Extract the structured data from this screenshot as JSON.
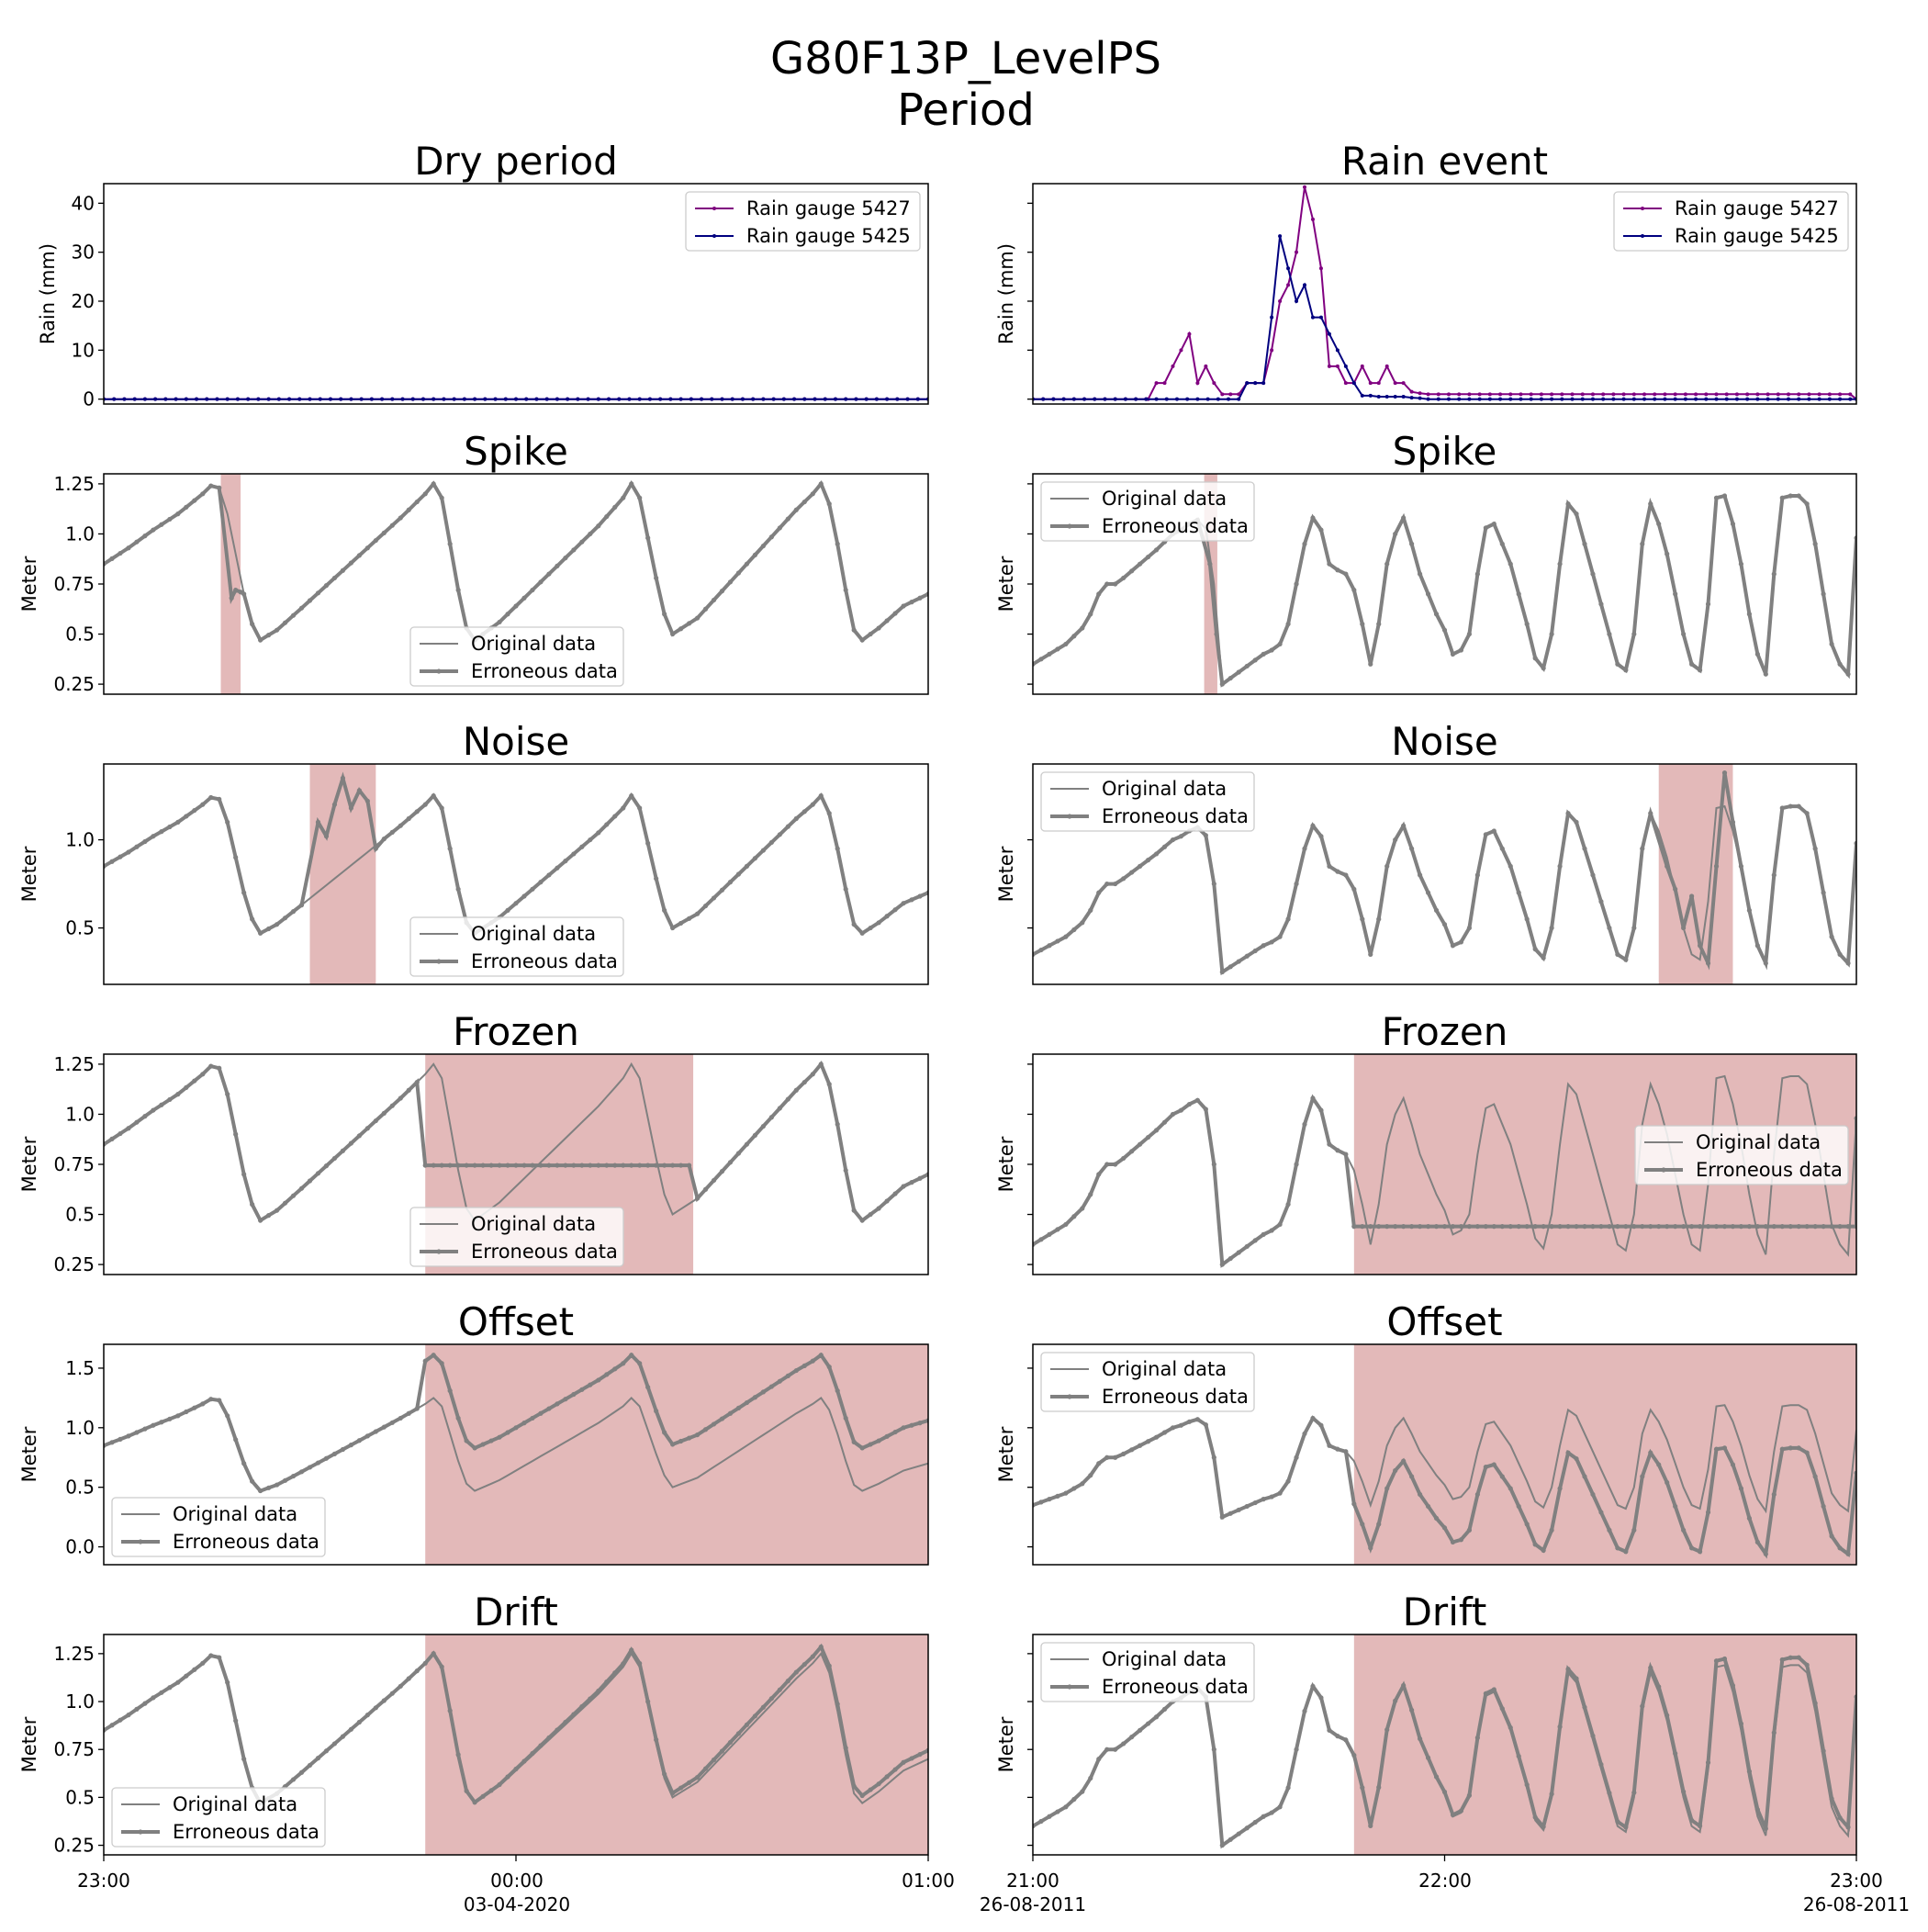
{
  "figure": {
    "title_line1": "G80F13P_LevelPS",
    "title_line2": "Period"
  },
  "colors": {
    "rain_5427": "#800080",
    "rain_5425": "#00007f",
    "series": "#808080",
    "error_region": "#e3b9b9"
  },
  "x_axes": {
    "left": {
      "ticks": [
        "23:00",
        "00:00",
        "01:00"
      ],
      "date_label": "03-04-2020"
    },
    "right": {
      "ticks": [
        "21:00",
        "22:00",
        "23:00"
      ],
      "start_date_label": "26-08-2011",
      "end_date_label": "26-08-2011"
    }
  },
  "chart_data": [
    {
      "id": "rain-dry",
      "type": "line",
      "title": "Dry period",
      "ylabel": "Rain (mm)",
      "ylim": [
        -1,
        44
      ],
      "yticks": [
        0,
        10,
        20,
        30,
        40
      ],
      "legend": [
        "Rain gauge 5427",
        "Rain gauge 5425"
      ],
      "legend_loc": "upper right",
      "series": [
        {
          "name": "Rain gauge 5427",
          "values": [
            0
          ]
        },
        {
          "name": "Rain gauge 5425",
          "values": [
            0
          ]
        }
      ]
    },
    {
      "id": "rain-event",
      "type": "line",
      "title": "Rain event",
      "ylabel": "Rain (mm)",
      "ylim": [
        -1,
        44
      ],
      "yticks": [
        0,
        10,
        20,
        30,
        40
      ],
      "legend": [
        "Rain gauge 5427",
        "Rain gauge 5425"
      ],
      "legend_loc": "upper right",
      "series": [
        {
          "name": "Rain gauge 5427",
          "x": [
            0,
            14,
            15,
            16,
            17,
            18,
            19,
            20,
            21,
            22,
            23,
            24,
            25,
            26,
            27,
            28,
            29,
            30,
            31,
            32,
            33,
            34,
            35,
            36,
            37,
            38,
            39,
            40,
            41,
            42,
            43,
            44,
            45,
            46,
            47,
            48,
            100
          ],
          "values": [
            0,
            0,
            3.3,
            3.3,
            6.7,
            10,
            13.3,
            3.3,
            6.7,
            3.3,
            1,
            1,
            1,
            3.3,
            3.3,
            3.3,
            10,
            20,
            23.3,
            30,
            43.3,
            36.7,
            26.7,
            6.7,
            6.7,
            3.3,
            3.3,
            6.7,
            3.3,
            3.3,
            6.7,
            3.3,
            3.3,
            1.5,
            1.2,
            1,
            0
          ]
        },
        {
          "name": "Rain gauge 5425",
          "x": [
            0,
            25,
            26,
            27,
            28,
            29,
            30,
            31,
            32,
            33,
            34,
            35,
            36,
            37,
            38,
            39,
            40,
            41,
            42,
            43,
            44,
            45,
            46,
            47,
            48,
            100
          ],
          "values": [
            0,
            0,
            3.3,
            3.3,
            3.3,
            16.7,
            33.3,
            26.7,
            20,
            23.3,
            16.7,
            16.7,
            13.3,
            10,
            6.7,
            3.3,
            0.7,
            0.7,
            0.5,
            0.5,
            0.5,
            0.5,
            0.3,
            0.2,
            0,
            0
          ]
        }
      ]
    },
    {
      "id": "spike-dry",
      "type": "line",
      "title": "Spike",
      "ylabel": "Meter",
      "ylim": [
        0.2,
        1.3
      ],
      "yticks": [
        0.25,
        0.5,
        0.75,
        1.0,
        1.25
      ],
      "legend": [
        "Original data",
        "Erroneous data"
      ],
      "legend_loc": "lower center",
      "error_region": [
        14.2,
        16.6
      ]
    },
    {
      "id": "spike-rain",
      "type": "line",
      "title": "Spike",
      "ylabel": "Meter",
      "ylim": [
        0.2,
        1.3
      ],
      "yticks": [],
      "legend": [
        "Original data",
        "Erroneous data"
      ],
      "legend_loc": "upper left",
      "error_region": [
        20.8,
        22.4
      ]
    },
    {
      "id": "noise-dry",
      "type": "line",
      "title": "Noise",
      "ylabel": "Meter",
      "ylim": [
        0.18,
        1.43
      ],
      "yticks": [
        0.5,
        1.0
      ],
      "legend": [
        "Original data",
        "Erroneous data"
      ],
      "legend_loc": "lower center",
      "error_region": [
        25,
        33
      ]
    },
    {
      "id": "noise-rain",
      "type": "line",
      "title": "Noise",
      "ylabel": "Meter",
      "ylim": [
        0.18,
        1.43
      ],
      "yticks": [],
      "legend": [
        "Original data",
        "Erroneous data"
      ],
      "legend_loc": "upper left",
      "error_region": [
        76,
        85
      ]
    },
    {
      "id": "frozen-dry",
      "type": "line",
      "title": "Frozen",
      "ylabel": "Meter",
      "ylim": [
        0.2,
        1.3
      ],
      "yticks": [
        0.25,
        0.5,
        0.75,
        1.0,
        1.25
      ],
      "legend": [
        "Original data",
        "Erroneous data"
      ],
      "legend_loc": "lower center",
      "error_region": [
        39,
        71.5
      ],
      "frozen_value": 0.745
    },
    {
      "id": "frozen-rain",
      "type": "line",
      "title": "Frozen",
      "ylabel": "Meter",
      "ylim": [
        0.2,
        1.3
      ],
      "yticks": [],
      "legend": [
        "Original data",
        "Erroneous data"
      ],
      "legend_loc": "center right",
      "error_region": [
        39,
        100
      ],
      "frozen_value": 0.44
    },
    {
      "id": "offset-dry",
      "type": "line",
      "title": "Offset",
      "ylabel": "Meter",
      "ylim": [
        -0.15,
        1.7
      ],
      "yticks": [
        0.0,
        0.5,
        1.0,
        1.5
      ],
      "legend": [
        "Original data",
        "Erroneous data"
      ],
      "legend_loc": "lower left",
      "error_region": [
        39,
        100
      ],
      "offset": 0.36
    },
    {
      "id": "offset-rain",
      "type": "line",
      "title": "Offset",
      "ylabel": "Meter",
      "ylim": [
        -0.15,
        1.7
      ],
      "yticks": [],
      "legend": [
        "Original data",
        "Erroneous data"
      ],
      "legend_loc": "upper left",
      "error_region": [
        39,
        100
      ],
      "offset": -0.36
    },
    {
      "id": "drift-dry",
      "type": "line",
      "title": "Drift",
      "ylabel": "Meter",
      "ylim": [
        0.2,
        1.35
      ],
      "yticks": [
        0.25,
        0.5,
        0.75,
        1.0,
        1.25
      ],
      "legend": [
        "Original data",
        "Erroneous data"
      ],
      "legend_loc": "lower left",
      "error_region": [
        39,
        100
      ],
      "drift_end": 0.045
    },
    {
      "id": "drift-rain",
      "type": "line",
      "title": "Drift",
      "ylabel": "Meter",
      "ylim": [
        0.2,
        1.35
      ],
      "yticks": [],
      "legend": [
        "Original data",
        "Erroneous data"
      ],
      "legend_loc": "upper left",
      "error_region": [
        39,
        100
      ],
      "drift_end": 0.045
    }
  ],
  "level_series": {
    "dry_period": [
      [
        0,
        0.85
      ],
      [
        3,
        0.93
      ],
      [
        6,
        1.02
      ],
      [
        9,
        1.1
      ],
      [
        12,
        1.2
      ],
      [
        13,
        1.24
      ],
      [
        14,
        1.23
      ],
      [
        15,
        1.1
      ],
      [
        16,
        0.9
      ],
      [
        17,
        0.7
      ],
      [
        18,
        0.55
      ],
      [
        19,
        0.47
      ],
      [
        21,
        0.52
      ],
      [
        24,
        0.63
      ],
      [
        28,
        0.78
      ],
      [
        32,
        0.93
      ],
      [
        36,
        1.08
      ],
      [
        39,
        1.2
      ],
      [
        40,
        1.25
      ],
      [
        41,
        1.18
      ],
      [
        42,
        0.95
      ],
      [
        43,
        0.72
      ],
      [
        44,
        0.53
      ],
      [
        45,
        0.47
      ],
      [
        48,
        0.56
      ],
      [
        52,
        0.72
      ],
      [
        56,
        0.88
      ],
      [
        60,
        1.04
      ],
      [
        63,
        1.18
      ],
      [
        64,
        1.25
      ],
      [
        65,
        1.18
      ],
      [
        66,
        0.98
      ],
      [
        67,
        0.78
      ],
      [
        68,
        0.6
      ],
      [
        69,
        0.5
      ],
      [
        72,
        0.58
      ],
      [
        76,
        0.76
      ],
      [
        80,
        0.94
      ],
      [
        84,
        1.12
      ],
      [
        86,
        1.2
      ],
      [
        87,
        1.25
      ],
      [
        88,
        1.15
      ],
      [
        89,
        0.95
      ],
      [
        90,
        0.72
      ],
      [
        91,
        0.52
      ],
      [
        92,
        0.47
      ],
      [
        94,
        0.53
      ],
      [
        97,
        0.64
      ],
      [
        100,
        0.7
      ]
    ],
    "rain_event": [
      [
        0,
        0.35
      ],
      [
        2,
        0.4
      ],
      [
        4,
        0.45
      ],
      [
        6,
        0.53
      ],
      [
        7,
        0.6
      ],
      [
        8,
        0.7
      ],
      [
        9,
        0.75
      ],
      [
        10,
        0.75
      ],
      [
        11,
        0.78
      ],
      [
        13,
        0.85
      ],
      [
        15,
        0.92
      ],
      [
        17,
        1.0
      ],
      [
        18,
        1.02
      ],
      [
        19,
        1.05
      ],
      [
        20,
        1.07
      ],
      [
        20.8,
        1.08
      ],
      [
        22,
        0.75
      ],
      [
        23,
        0.25
      ],
      [
        24,
        0.28
      ],
      [
        26,
        0.34
      ],
      [
        28,
        0.4
      ],
      [
        29,
        0.42
      ],
      [
        30,
        0.45
      ],
      [
        31,
        0.55
      ],
      [
        32,
        0.75
      ],
      [
        33,
        0.95
      ],
      [
        34,
        1.08
      ],
      [
        35,
        1.02
      ],
      [
        36,
        0.85
      ],
      [
        37,
        0.82
      ],
      [
        38,
        0.8
      ],
      [
        39,
        0.72
      ],
      [
        40,
        0.55
      ],
      [
        41,
        0.35
      ],
      [
        42,
        0.55
      ],
      [
        43,
        0.85
      ],
      [
        44,
        1.0
      ],
      [
        45,
        1.08
      ],
      [
        46,
        0.95
      ],
      [
        47,
        0.8
      ],
      [
        48,
        0.7
      ],
      [
        49,
        0.6
      ],
      [
        50,
        0.52
      ],
      [
        51,
        0.4
      ],
      [
        52,
        0.42
      ],
      [
        53,
        0.5
      ],
      [
        54,
        0.8
      ],
      [
        55,
        1.03
      ],
      [
        56,
        1.05
      ],
      [
        57,
        0.95
      ],
      [
        58,
        0.85
      ],
      [
        59,
        0.7
      ],
      [
        60,
        0.55
      ],
      [
        61,
        0.38
      ],
      [
        62,
        0.33
      ],
      [
        63,
        0.5
      ],
      [
        64,
        0.85
      ],
      [
        65,
        1.15
      ],
      [
        66,
        1.1
      ],
      [
        67,
        0.95
      ],
      [
        68,
        0.8
      ],
      [
        69,
        0.65
      ],
      [
        70,
        0.5
      ],
      [
        71,
        0.35
      ],
      [
        72,
        0.32
      ],
      [
        73,
        0.5
      ],
      [
        74,
        0.95
      ],
      [
        75,
        1.15
      ],
      [
        76,
        1.05
      ],
      [
        77,
        0.9
      ],
      [
        78,
        0.7
      ],
      [
        79,
        0.5
      ],
      [
        80,
        0.35
      ],
      [
        81,
        0.32
      ],
      [
        82,
        0.65
      ],
      [
        83,
        1.18
      ],
      [
        84,
        1.19
      ],
      [
        85,
        1.05
      ],
      [
        86,
        0.85
      ],
      [
        87,
        0.6
      ],
      [
        88,
        0.4
      ],
      [
        89,
        0.3
      ],
      [
        90,
        0.8
      ],
      [
        91,
        1.18
      ],
      [
        92,
        1.19
      ],
      [
        93,
        1.19
      ],
      [
        94,
        1.15
      ],
      [
        95,
        0.95
      ],
      [
        96,
        0.7
      ],
      [
        97,
        0.45
      ],
      [
        98,
        0.35
      ],
      [
        99,
        0.3
      ],
      [
        100,
        0.98
      ]
    ]
  },
  "error_overrides": {
    "spike-dry": [
      [
        15.5,
        0.68
      ],
      [
        16,
        0.72
      ],
      [
        16.6,
        0.71
      ]
    ],
    "spike-rain": [
      [
        21.5,
        0.85
      ],
      [
        22.3,
        0.5
      ]
    ],
    "noise-dry": [
      [
        26,
        1.1
      ],
      [
        27,
        1.02
      ],
      [
        28,
        1.2
      ],
      [
        29,
        1.35
      ],
      [
        30,
        1.18
      ],
      [
        31,
        1.28
      ],
      [
        32,
        1.22
      ],
      [
        33,
        0.95
      ]
    ],
    "noise-rain": [
      [
        77,
        0.85
      ],
      [
        78,
        0.72
      ],
      [
        79,
        0.5
      ],
      [
        80,
        0.68
      ],
      [
        81,
        0.4
      ],
      [
        82,
        0.3
      ],
      [
        83,
        0.85
      ],
      [
        84,
        1.38
      ],
      [
        85,
        1.1
      ]
    ]
  },
  "legend_labels": {
    "rain_a": "Rain gauge 5427",
    "rain_b": "Rain gauge 5425",
    "orig": "Original data",
    "err": "Erroneous data"
  }
}
